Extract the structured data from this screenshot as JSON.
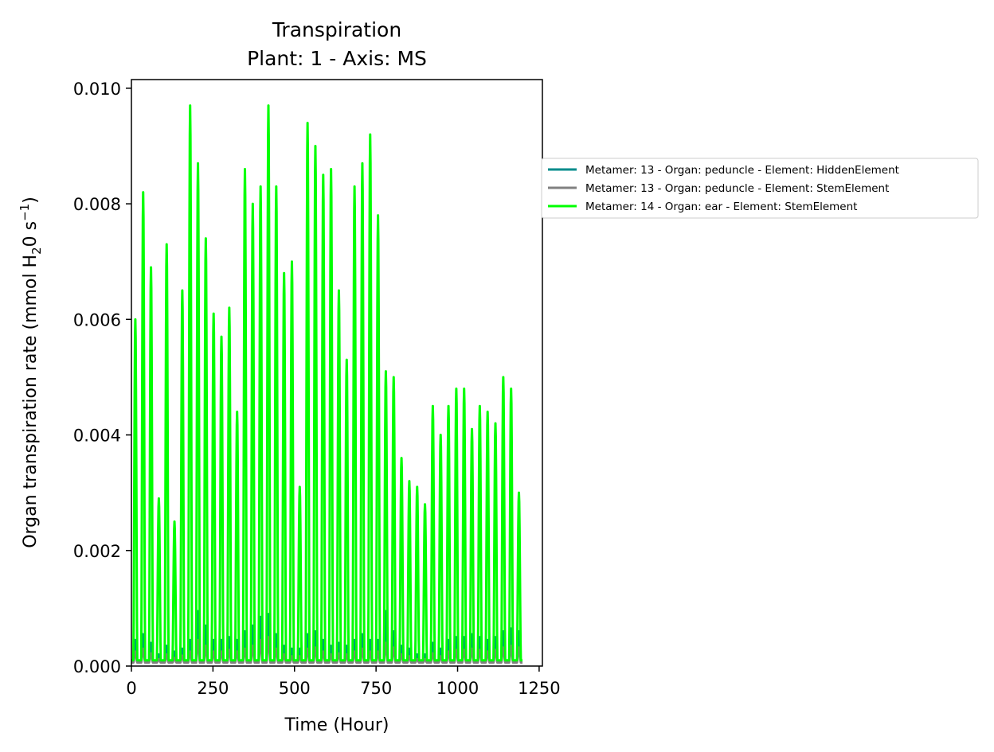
{
  "chart_data": {
    "type": "line",
    "title": "Transpiration",
    "subtitle": "Plant: 1 - Axis: MS",
    "xlabel": "Time (Hour)",
    "ylabel": {
      "main": "Organ transpiration rate (mmol H",
      "sub": "2",
      "mid": "0 s",
      "sup": "−1",
      "end": ")"
    },
    "xlim": [
      0,
      1260
    ],
    "ylim": [
      0,
      0.01015
    ],
    "xticks": [
      0,
      250,
      500,
      750,
      1000,
      1250
    ],
    "xtick_labels": [
      "0",
      "250",
      "500",
      "750",
      "1000",
      "1250"
    ],
    "yticks": [
      0,
      0.002,
      0.004,
      0.006,
      0.008,
      0.01
    ],
    "ytick_labels": [
      "0.000",
      "0.002",
      "0.004",
      "0.006",
      "0.008",
      "0.010"
    ],
    "grid": false,
    "legend_position": "outside-right",
    "daily_period_hours": 24,
    "x_end": 1200,
    "series": [
      {
        "name": "Metamer: 13 - Organ: peduncle - Element: HiddenElement",
        "color": "#008b8b",
        "daily_peaks": [
          0.00045,
          0.00055,
          0.0004,
          0.0002,
          0.00035,
          0.00025,
          0.0003,
          0.00045,
          0.00095,
          0.0007,
          0.00045,
          0.00045,
          0.0005,
          0.00045,
          0.0006,
          0.0007,
          0.00085,
          0.0009,
          0.00055,
          0.00035,
          0.0003,
          0.0003,
          0.00055,
          0.0006,
          0.00045,
          0.00035,
          0.0004,
          0.00035,
          0.00045,
          0.00055,
          0.00045,
          0.00045,
          0.00095,
          0.0006,
          0.00035,
          0.0003,
          0.0002,
          0.0002,
          0.0004,
          0.0003,
          0.00045,
          0.0005,
          0.0005,
          0.00055,
          0.0005,
          0.00045,
          0.0005,
          0.0006,
          0.00065,
          0.0006
        ],
        "night_value": 8e-05
      },
      {
        "name": "Metamer: 13 - Organ: peduncle - Element: StemElement",
        "color": "#808080",
        "daily_peaks": [
          0.00025,
          0.0003,
          0.00022,
          0.00012,
          0.0002,
          0.00014,
          0.00018,
          0.00025,
          0.00045,
          0.00035,
          0.00025,
          0.00025,
          0.00028,
          0.00025,
          0.0003,
          0.00035,
          0.00045,
          0.0005,
          0.0003,
          0.0002,
          0.00017,
          0.00017,
          0.0003,
          0.00032,
          0.00025,
          0.0002,
          0.00022,
          0.0002,
          0.00025,
          0.0003,
          0.00025,
          0.00025,
          0.0004,
          0.00032,
          0.0002,
          0.00017,
          0.00012,
          0.00012,
          0.00022,
          0.00017,
          0.00025,
          0.00028,
          0.00028,
          0.0003,
          0.00028,
          0.00025,
          0.00028,
          0.00032,
          0.00035,
          0.00032
        ],
        "night_value": 6e-05
      },
      {
        "name": "Metamer: 14 - Organ: ear - Element: StemElement",
        "color": "#00ff00",
        "daily_peaks": [
          0.006,
          0.0082,
          0.0069,
          0.0029,
          0.0073,
          0.0025,
          0.0065,
          0.0097,
          0.0087,
          0.0074,
          0.0061,
          0.0057,
          0.0062,
          0.0044,
          0.0086,
          0.008,
          0.0083,
          0.0097,
          0.0083,
          0.0068,
          0.007,
          0.0031,
          0.0094,
          0.009,
          0.0085,
          0.0086,
          0.0065,
          0.0053,
          0.0083,
          0.0087,
          0.0092,
          0.0078,
          0.0051,
          0.005,
          0.0036,
          0.0032,
          0.0031,
          0.0028,
          0.0045,
          0.004,
          0.0045,
          0.0048,
          0.0048,
          0.0041,
          0.0045,
          0.0044,
          0.0042,
          0.005,
          0.0048,
          0.003
        ],
        "night_value": 0.0001
      }
    ]
  }
}
